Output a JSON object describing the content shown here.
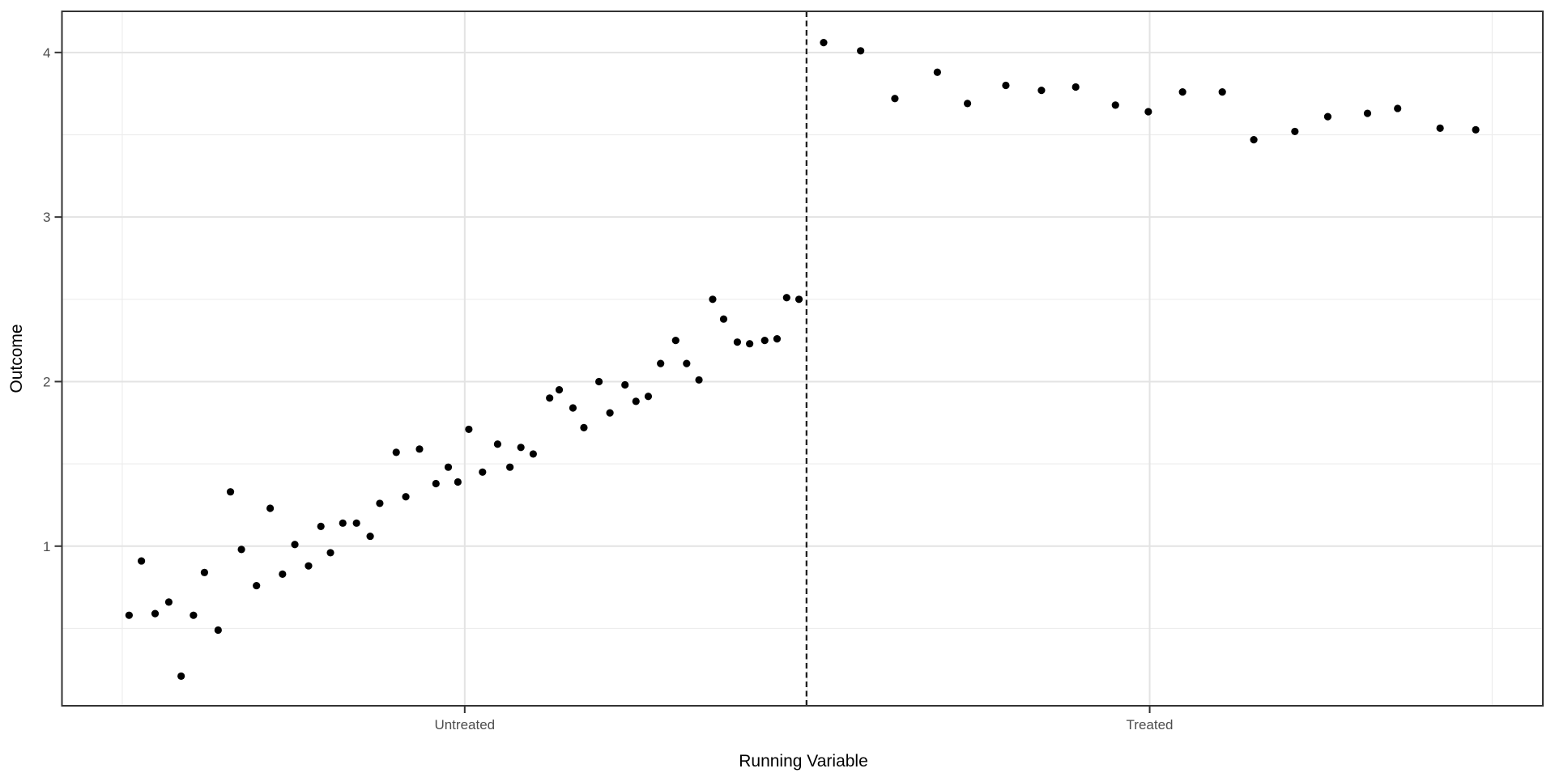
{
  "figure": {
    "background_color": "#FFFFFF",
    "panel_border_color": "#333333",
    "grid_major_color": "#E3E3E3",
    "grid_minor_color": "#EDEDED",
    "tick_mark_color": "#333333",
    "tick_label_color": "#4D4D4D",
    "axis_title_color": "#000000",
    "point_color": "#000000",
    "cutoff_line_color": "#1A1A1A"
  },
  "chart_data": {
    "type": "scatter",
    "title": "",
    "xlabel": "Running Variable",
    "ylabel": "Outcome",
    "grid": "on",
    "legend": "none",
    "xlim": [
      -0.044,
      1.037
    ],
    "ylim": [
      0.03,
      4.25
    ],
    "x_axis": {
      "ticks": [
        {
          "value": 0.25,
          "label": "Untreated"
        },
        {
          "value": 0.75,
          "label": "Treated"
        }
      ],
      "minor_breaks": [
        0.0,
        0.5,
        1.0
      ]
    },
    "y_axis": {
      "ticks": [
        {
          "value": 1,
          "label": "1"
        },
        {
          "value": 2,
          "label": "2"
        },
        {
          "value": 3,
          "label": "3"
        },
        {
          "value": 4,
          "label": "4"
        }
      ],
      "minor_breaks": [
        0.5,
        1.5,
        2.5,
        3.5
      ]
    },
    "cutoff_line": {
      "x": 0.4995,
      "style": "dashed",
      "orientation": "vertical"
    },
    "series": [
      {
        "name": "untreated",
        "points": [
          [
            0.005,
            0.58
          ],
          [
            0.014,
            0.91
          ],
          [
            0.024,
            0.59
          ],
          [
            0.034,
            0.66
          ],
          [
            0.043,
            0.21
          ],
          [
            0.052,
            0.58
          ],
          [
            0.06,
            0.84
          ],
          [
            0.07,
            0.49
          ],
          [
            0.079,
            1.33
          ],
          [
            0.087,
            0.98
          ],
          [
            0.098,
            0.76
          ],
          [
            0.108,
            1.23
          ],
          [
            0.117,
            0.83
          ],
          [
            0.126,
            1.01
          ],
          [
            0.136,
            0.88
          ],
          [
            0.145,
            1.12
          ],
          [
            0.152,
            0.96
          ],
          [
            0.161,
            1.14
          ],
          [
            0.171,
            1.14
          ],
          [
            0.181,
            1.06
          ],
          [
            0.188,
            1.26
          ],
          [
            0.2,
            1.57
          ],
          [
            0.207,
            1.3
          ],
          [
            0.217,
            1.59
          ],
          [
            0.229,
            1.38
          ],
          [
            0.238,
            1.48
          ],
          [
            0.245,
            1.39
          ],
          [
            0.253,
            1.71
          ],
          [
            0.263,
            1.45
          ],
          [
            0.274,
            1.62
          ],
          [
            0.283,
            1.48
          ],
          [
            0.291,
            1.6
          ],
          [
            0.3,
            1.56
          ],
          [
            0.312,
            1.9
          ],
          [
            0.319,
            1.95
          ],
          [
            0.329,
            1.84
          ],
          [
            0.337,
            1.72
          ],
          [
            0.348,
            2.0
          ],
          [
            0.356,
            1.81
          ],
          [
            0.367,
            1.98
          ],
          [
            0.375,
            1.88
          ],
          [
            0.384,
            1.91
          ],
          [
            0.393,
            2.11
          ],
          [
            0.404,
            2.25
          ],
          [
            0.412,
            2.11
          ],
          [
            0.421,
            2.01
          ],
          [
            0.431,
            2.5
          ],
          [
            0.439,
            2.38
          ],
          [
            0.449,
            2.24
          ],
          [
            0.458,
            2.23
          ],
          [
            0.469,
            2.25
          ],
          [
            0.478,
            2.26
          ],
          [
            0.485,
            2.51
          ],
          [
            0.494,
            2.5
          ]
        ]
      },
      {
        "name": "treated",
        "points": [
          [
            0.512,
            4.06
          ],
          [
            0.539,
            4.01
          ],
          [
            0.564,
            3.72
          ],
          [
            0.595,
            3.88
          ],
          [
            0.617,
            3.69
          ],
          [
            0.645,
            3.8
          ],
          [
            0.671,
            3.77
          ],
          [
            0.696,
            3.79
          ],
          [
            0.725,
            3.68
          ],
          [
            0.749,
            3.64
          ],
          [
            0.774,
            3.76
          ],
          [
            0.803,
            3.76
          ],
          [
            0.826,
            3.47
          ],
          [
            0.856,
            3.52
          ],
          [
            0.88,
            3.61
          ],
          [
            0.909,
            3.63
          ],
          [
            0.931,
            3.66
          ],
          [
            0.962,
            3.54
          ],
          [
            0.988,
            3.53
          ]
        ]
      }
    ]
  }
}
